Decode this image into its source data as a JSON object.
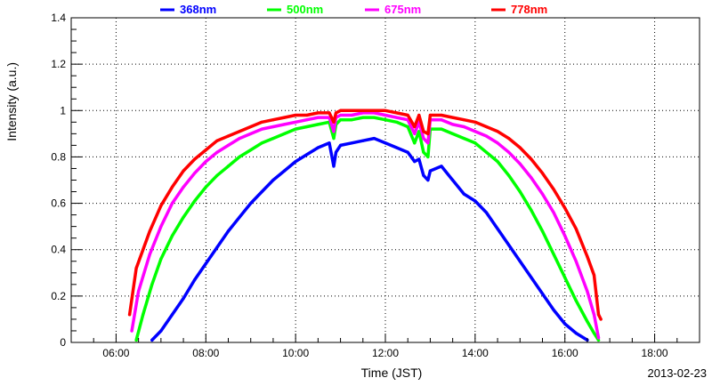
{
  "chart_data": {
    "type": "scatter",
    "xlabel": "Time (JST)",
    "ylabel": "Intensity (a.u.)",
    "date_label": "2013-02-23",
    "xlim": [
      5,
      19
    ],
    "ylim": [
      0,
      1.4
    ],
    "x_ticks": [
      {
        "value": 6,
        "label": "06:00"
      },
      {
        "value": 8,
        "label": "08:00"
      },
      {
        "value": 10,
        "label": "10:00"
      },
      {
        "value": 12,
        "label": "12:00"
      },
      {
        "value": 14,
        "label": "14:00"
      },
      {
        "value": 16,
        "label": "16:00"
      },
      {
        "value": 18,
        "label": "18:00"
      }
    ],
    "y_ticks": [
      {
        "value": 0,
        "label": "0"
      },
      {
        "value": 0.2,
        "label": "0.2"
      },
      {
        "value": 0.4,
        "label": "0.4"
      },
      {
        "value": 0.6,
        "label": "0.6"
      },
      {
        "value": 0.8,
        "label": "0.8"
      },
      {
        "value": 1,
        "label": "1"
      },
      {
        "value": 1.2,
        "label": "1.2"
      },
      {
        "value": 1.4,
        "label": "1.4"
      }
    ],
    "grid": true,
    "legend_position": "top",
    "series": [
      {
        "name": "368nm",
        "color": "#0000ff",
        "x": [
          6.8,
          7.0,
          7.25,
          7.5,
          7.75,
          8.0,
          8.25,
          8.5,
          8.75,
          9.0,
          9.25,
          9.5,
          9.75,
          10.0,
          10.25,
          10.5,
          10.75,
          10.85,
          10.9,
          11.0,
          11.25,
          11.5,
          11.75,
          12.0,
          12.25,
          12.5,
          12.65,
          12.75,
          12.85,
          12.95,
          13.0,
          13.25,
          13.5,
          13.75,
          14.0,
          14.25,
          14.5,
          14.75,
          15.0,
          15.25,
          15.5,
          15.75,
          16.0,
          16.25,
          16.5
        ],
        "y": [
          0.01,
          0.05,
          0.12,
          0.19,
          0.27,
          0.34,
          0.41,
          0.48,
          0.54,
          0.6,
          0.65,
          0.7,
          0.74,
          0.78,
          0.81,
          0.84,
          0.86,
          0.76,
          0.82,
          0.85,
          0.86,
          0.87,
          0.88,
          0.86,
          0.84,
          0.82,
          0.78,
          0.79,
          0.72,
          0.7,
          0.74,
          0.76,
          0.7,
          0.64,
          0.61,
          0.56,
          0.49,
          0.42,
          0.35,
          0.28,
          0.21,
          0.14,
          0.08,
          0.04,
          0.01
        ]
      },
      {
        "name": "500nm",
        "color": "#00ff00",
        "x": [
          6.45,
          6.6,
          6.8,
          7.0,
          7.25,
          7.5,
          7.75,
          8.0,
          8.25,
          8.5,
          8.75,
          9.0,
          9.25,
          9.5,
          9.75,
          10.0,
          10.25,
          10.5,
          10.75,
          10.85,
          10.9,
          11.0,
          11.25,
          11.5,
          11.75,
          12.0,
          12.25,
          12.5,
          12.65,
          12.75,
          12.85,
          12.95,
          13.0,
          13.25,
          13.5,
          13.75,
          14.0,
          14.25,
          14.5,
          14.75,
          15.0,
          15.25,
          15.5,
          15.75,
          16.0,
          16.25,
          16.5,
          16.65,
          16.75
        ],
        "y": [
          0.01,
          0.12,
          0.25,
          0.36,
          0.46,
          0.54,
          0.61,
          0.67,
          0.72,
          0.76,
          0.8,
          0.83,
          0.86,
          0.88,
          0.9,
          0.92,
          0.93,
          0.94,
          0.95,
          0.88,
          0.94,
          0.96,
          0.96,
          0.97,
          0.97,
          0.96,
          0.95,
          0.93,
          0.86,
          0.91,
          0.82,
          0.8,
          0.92,
          0.92,
          0.9,
          0.88,
          0.86,
          0.82,
          0.78,
          0.72,
          0.65,
          0.57,
          0.48,
          0.38,
          0.28,
          0.18,
          0.09,
          0.04,
          0.01
        ]
      },
      {
        "name": "675nm",
        "color": "#ff00ff",
        "x": [
          6.35,
          6.5,
          6.75,
          7.0,
          7.25,
          7.5,
          7.75,
          8.0,
          8.25,
          8.5,
          8.75,
          9.0,
          9.25,
          9.5,
          9.75,
          10.0,
          10.25,
          10.5,
          10.75,
          10.85,
          10.9,
          11.0,
          11.25,
          11.5,
          11.75,
          12.0,
          12.25,
          12.5,
          12.65,
          12.75,
          12.85,
          12.95,
          13.0,
          13.25,
          13.5,
          13.75,
          14.0,
          14.25,
          14.5,
          14.75,
          15.0,
          15.25,
          15.5,
          15.75,
          16.0,
          16.25,
          16.5,
          16.65,
          16.75
        ],
        "y": [
          0.05,
          0.22,
          0.38,
          0.5,
          0.6,
          0.67,
          0.73,
          0.78,
          0.82,
          0.85,
          0.88,
          0.9,
          0.92,
          0.93,
          0.94,
          0.95,
          0.96,
          0.97,
          0.97,
          0.91,
          0.97,
          0.98,
          0.98,
          0.99,
          0.99,
          0.98,
          0.97,
          0.96,
          0.9,
          0.95,
          0.88,
          0.86,
          0.96,
          0.96,
          0.94,
          0.93,
          0.91,
          0.89,
          0.86,
          0.82,
          0.77,
          0.71,
          0.64,
          0.56,
          0.46,
          0.35,
          0.22,
          0.12,
          0.02
        ]
      },
      {
        "name": "778nm",
        "color": "#ff0000",
        "x": [
          6.3,
          6.45,
          6.75,
          7.0,
          7.25,
          7.5,
          7.75,
          8.0,
          8.25,
          8.5,
          8.75,
          9.0,
          9.25,
          9.5,
          9.75,
          10.0,
          10.25,
          10.5,
          10.75,
          10.85,
          10.9,
          11.0,
          11.25,
          11.5,
          11.75,
          12.0,
          12.25,
          12.5,
          12.65,
          12.75,
          12.85,
          12.95,
          13.0,
          13.25,
          13.5,
          13.75,
          14.0,
          14.25,
          14.5,
          14.75,
          15.0,
          15.25,
          15.5,
          15.75,
          16.0,
          16.25,
          16.5,
          16.65,
          16.75,
          16.8
        ],
        "y": [
          0.12,
          0.32,
          0.48,
          0.59,
          0.67,
          0.74,
          0.79,
          0.83,
          0.87,
          0.89,
          0.91,
          0.93,
          0.95,
          0.96,
          0.97,
          0.98,
          0.98,
          0.99,
          0.99,
          0.95,
          0.99,
          1.0,
          1.0,
          1.0,
          1.0,
          1.0,
          0.99,
          0.98,
          0.93,
          0.98,
          0.91,
          0.9,
          0.98,
          0.98,
          0.97,
          0.96,
          0.95,
          0.93,
          0.91,
          0.88,
          0.84,
          0.79,
          0.73,
          0.66,
          0.58,
          0.49,
          0.37,
          0.29,
          0.12,
          0.1
        ]
      }
    ]
  }
}
